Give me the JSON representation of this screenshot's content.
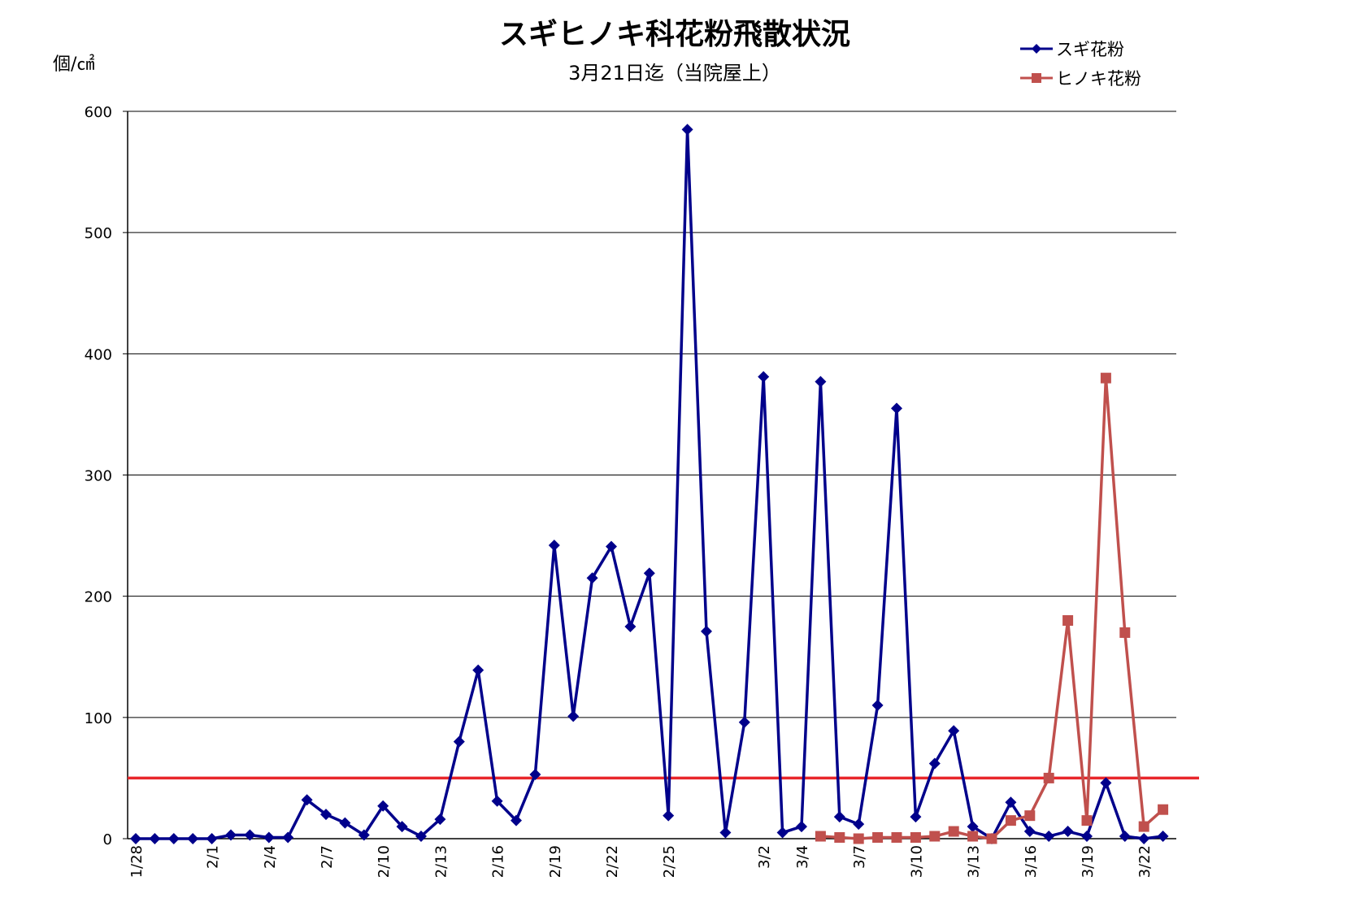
{
  "chart_data": {
    "type": "line",
    "title": "スギヒノキ科花粉飛散状況",
    "subtitle": "3月21日迄（当院屋上）",
    "ylabel": "個/㎠",
    "ylim": [
      0,
      600
    ],
    "yticks": [
      "0",
      "100",
      "200",
      "300",
      "400",
      "500",
      "600"
    ],
    "grid": true,
    "legend_position": "top-right",
    "x": [
      "1/28",
      "1/29",
      "1/30",
      "1/31",
      "2/1",
      "2/2",
      "2/3",
      "2/4",
      "2/5",
      "2/6",
      "2/7",
      "2/8",
      "2/9",
      "2/10",
      "2/11",
      "2/12",
      "2/13",
      "2/14",
      "2/15",
      "2/16",
      "2/17",
      "2/18",
      "2/19",
      "2/20",
      "2/21",
      "2/22",
      "2/23",
      "2/24",
      "2/25",
      "2/26",
      "2/27",
      "2/28",
      "3/1",
      "3/2",
      "3/3",
      "3/4",
      "3/5",
      "3/6",
      "3/7",
      "3/8",
      "3/9",
      "3/10",
      "3/11",
      "3/12",
      "3/13",
      "3/14",
      "3/15",
      "3/16",
      "3/17",
      "3/18",
      "3/19",
      "3/20",
      "3/21",
      "3/22",
      "3/23"
    ],
    "x_tick_labels": [
      {
        "date": "1/28",
        "label": "1/28"
      },
      {
        "date": "2/1",
        "label": "2/1"
      },
      {
        "date": "2/4",
        "label": "2/4"
      },
      {
        "date": "2/7",
        "label": "2/7"
      },
      {
        "date": "2/10",
        "label": "2/10"
      },
      {
        "date": "2/13",
        "label": "2/13"
      },
      {
        "date": "2/16",
        "label": "2/16"
      },
      {
        "date": "2/19",
        "label": "2/19"
      },
      {
        "date": "2/22",
        "label": "2/22"
      },
      {
        "date": "2/25",
        "label": "2/25"
      },
      {
        "date": "3/2",
        "label": "3/2"
      },
      {
        "date": "3/4",
        "label": "3/4"
      },
      {
        "date": "3/7",
        "label": "3/7"
      },
      {
        "date": "3/10",
        "label": "3/10"
      },
      {
        "date": "3/13",
        "label": "3/13"
      },
      {
        "date": "3/16",
        "label": "3/16"
      },
      {
        "date": "3/19",
        "label": "3/19"
      },
      {
        "date": "3/22",
        "label": "3/22"
      }
    ],
    "series": [
      {
        "name": "スギ花粉",
        "color": "#00008B",
        "marker": "diamond",
        "values": [
          0,
          0,
          0,
          0,
          0,
          3,
          3,
          1,
          1,
          32,
          20,
          13,
          3,
          27,
          10,
          2,
          16,
          80,
          139,
          31,
          15,
          53,
          242,
          101,
          215,
          241,
          175,
          219,
          19,
          585,
          171,
          5,
          96,
          381,
          5,
          10,
          377,
          18,
          12,
          110,
          355,
          18,
          62,
          89,
          10,
          0,
          30,
          6,
          2,
          6,
          2,
          46,
          2,
          0,
          2
        ]
      },
      {
        "name": "ヒノキ花粉",
        "color": "#C0504D",
        "marker": "square",
        "values": [
          null,
          null,
          null,
          null,
          null,
          null,
          null,
          null,
          null,
          null,
          null,
          null,
          null,
          null,
          null,
          null,
          null,
          null,
          null,
          null,
          null,
          null,
          null,
          null,
          null,
          null,
          null,
          null,
          null,
          null,
          null,
          null,
          null,
          null,
          null,
          null,
          2,
          1,
          0,
          1,
          1,
          1,
          2,
          6,
          2,
          0,
          15,
          19,
          50,
          180,
          15,
          380,
          170,
          10,
          24
        ]
      }
    ],
    "reference_line": {
      "value": 50,
      "color": "#E8262B"
    }
  }
}
